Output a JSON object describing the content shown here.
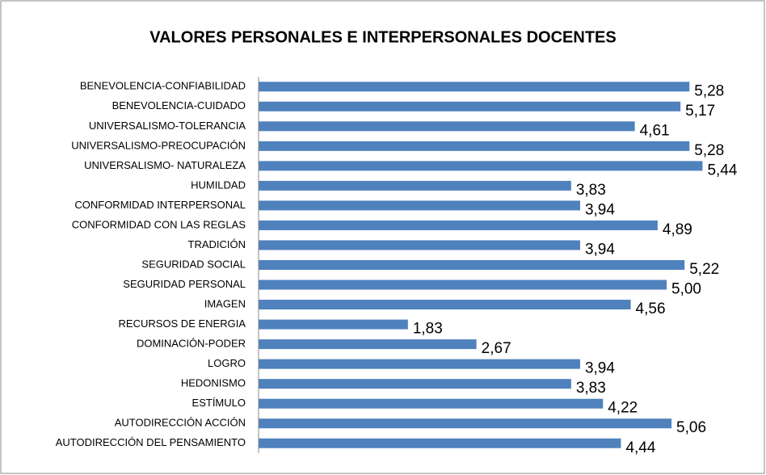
{
  "chart_data": {
    "type": "bar",
    "orientation": "horizontal",
    "title": "VALORES PERSONALES E INTERPERSONALES DOCENTES",
    "categories": [
      "BENEVOLENCIA-CONFIABILIDAD",
      "BENEVOLENCIA-CUIDADO",
      "UNIVERSALISMO-TOLERANCIA",
      "UNIVERSALISMO-PREOCUPACIÓN",
      "UNIVERSALISMO- NATURALEZA",
      "HUMILDAD",
      "CONFORMIDAD INTERPERSONAL",
      "CONFORMIDAD CON LAS REGLAS",
      "TRADICIÓN",
      "SEGURIDAD SOCIAL",
      "SEGURIDAD PERSONAL",
      "IMAGEN",
      "RECURSOS DE ENERGIA",
      "DOMINACIÓN-PODER",
      "LOGRO",
      "HEDONISMO",
      "ESTÍMULO",
      "AUTODIRECCIÓN ACCIÓN",
      "AUTODIRECCIÓN DEL PENSAMIENTO"
    ],
    "values": [
      5.28,
      5.17,
      4.61,
      5.28,
      5.44,
      3.83,
      3.94,
      4.89,
      3.94,
      5.22,
      5.0,
      4.56,
      1.83,
      2.67,
      3.94,
      3.83,
      4.22,
      5.06,
      4.44
    ],
    "value_labels": [
      "5,28",
      "5,17",
      "4,61",
      "5,28",
      "5,44",
      "3,83",
      "3,94",
      "4,89",
      "3,94",
      "5,22",
      "5,00",
      "4,56",
      "1,83",
      "2,67",
      "3,94",
      "3,83",
      "4,22",
      "5,06",
      "4,44"
    ],
    "color": "#4f81bd",
    "xlim": [
      0,
      6
    ]
  }
}
